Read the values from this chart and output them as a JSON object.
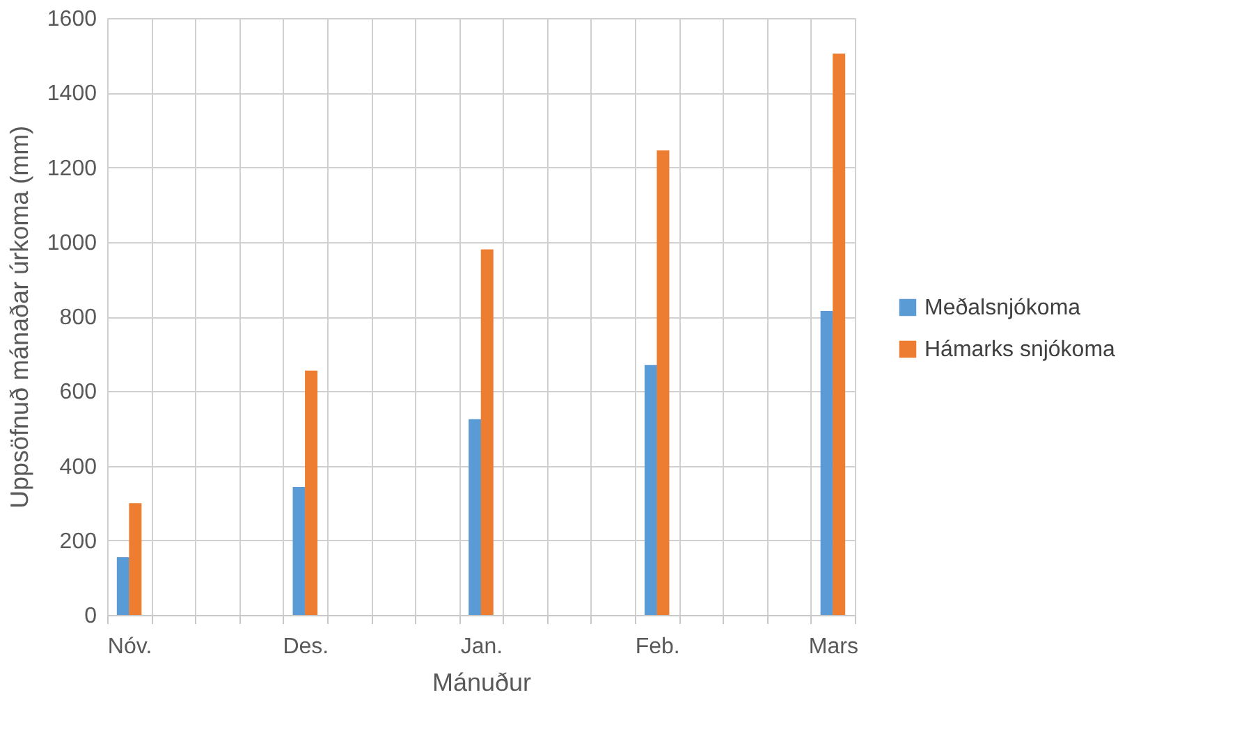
{
  "chart_data": {
    "type": "bar",
    "xlabel": "Mánuður",
    "ylabel": "Uppsöfnuð mánaðar úrkoma (mm)",
    "categories": [
      "Nóv.",
      null,
      null,
      null,
      "Des.",
      null,
      null,
      null,
      "Jan.",
      null,
      null,
      null,
      "Feb.",
      null,
      null,
      null,
      "Mars"
    ],
    "series": [
      {
        "name": "Meðalsnjókoma",
        "color": "#5b9bd5",
        "values": [
          155,
          null,
          null,
          null,
          343,
          null,
          null,
          null,
          525,
          null,
          null,
          null,
          670,
          null,
          null,
          null,
          815
        ]
      },
      {
        "name": "Hámarks snjókoma",
        "color": "#ed7d31",
        "values": [
          300,
          null,
          null,
          null,
          655,
          null,
          null,
          null,
          980,
          null,
          null,
          null,
          1245,
          null,
          null,
          null,
          1505
        ]
      }
    ],
    "ylim": [
      0,
      1600
    ],
    "yticks": [
      0,
      200,
      400,
      600,
      800,
      1000,
      1200,
      1400,
      1600
    ],
    "grid": true,
    "legend": "right"
  }
}
